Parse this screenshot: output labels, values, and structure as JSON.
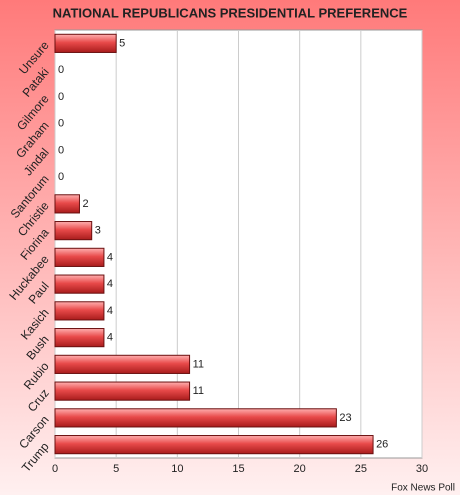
{
  "chart_data": {
    "type": "hbar",
    "title": "NATIONAL REPUBLICANS PRESIDENTIAL PREFERENCE",
    "categories": [
      "Unsure",
      "Pataki",
      "Gilmore",
      "Graham",
      "Jindal",
      "Santorum",
      "Christie",
      "Fiorina",
      "Huckabee",
      "Paul",
      "Kasich",
      "Bush",
      "Rubio",
      "Cruz",
      "Carson",
      "Trump"
    ],
    "values": [
      5,
      0,
      0,
      0,
      0,
      0,
      2,
      3,
      4,
      4,
      4,
      4,
      11,
      11,
      23,
      26
    ],
    "color": "#e84a4a",
    "xlim": [
      0,
      30
    ],
    "xticks": [
      0,
      5,
      10,
      15,
      20,
      25,
      30
    ],
    "grid": true,
    "source": "Fox News Poll"
  }
}
